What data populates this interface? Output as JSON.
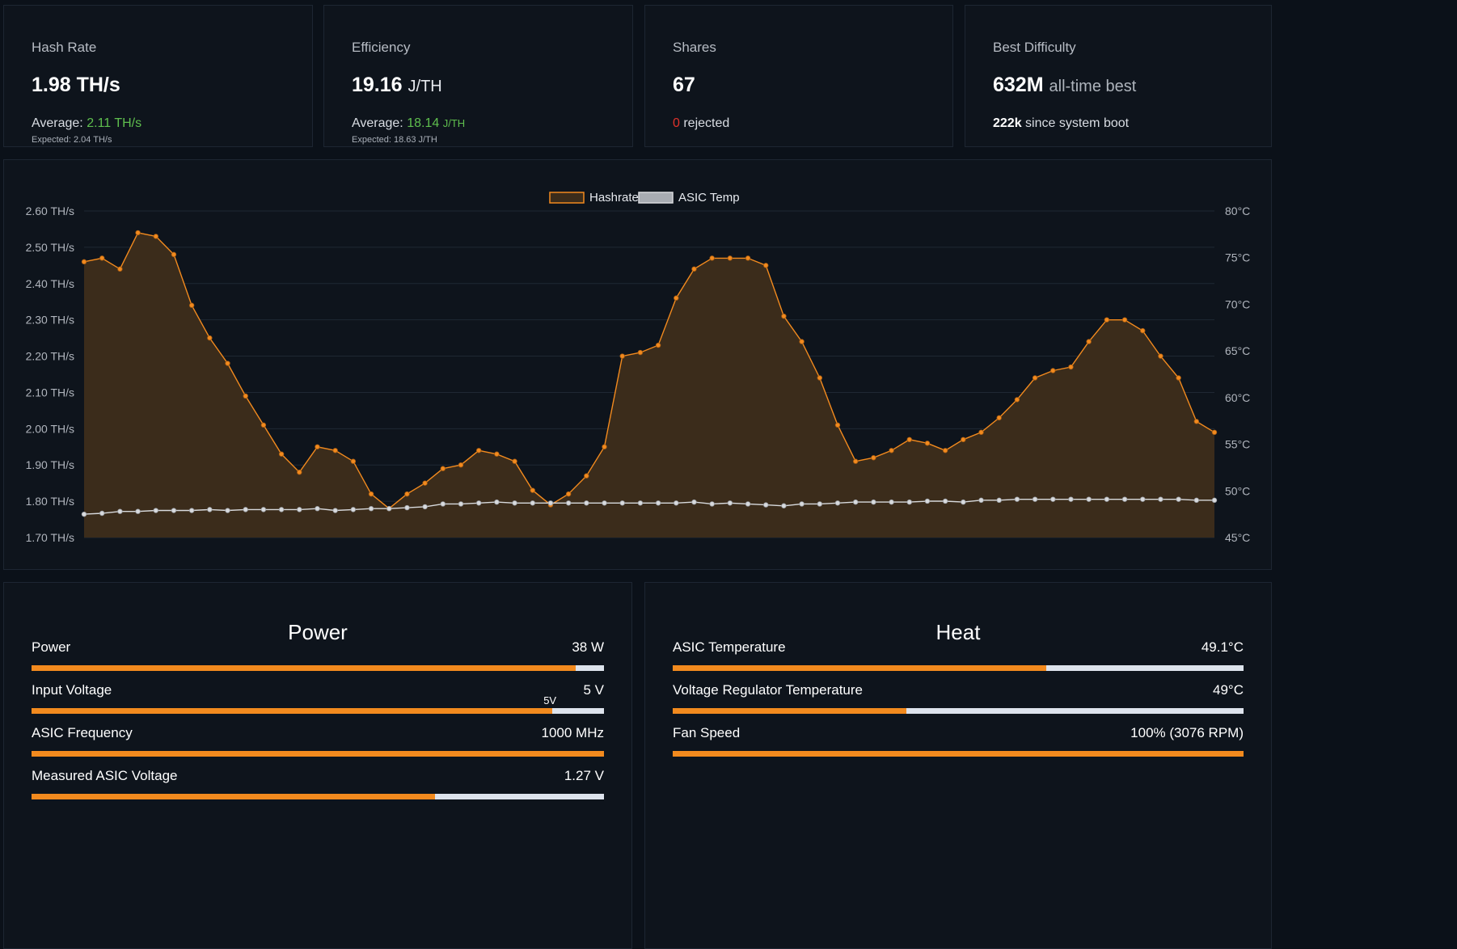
{
  "stats": [
    {
      "title": "Hash Rate",
      "value": "1.98 TH/s",
      "line1_prefix": "Average: ",
      "line1_value": "2.11 TH/s",
      "line2": "Expected: 2.04 TH/s"
    },
    {
      "title": "Efficiency",
      "value": "19.16",
      "unit": "J/TH",
      "line1_prefix": "Average: ",
      "line1_value": "18.14",
      "line1_unit": "J/TH",
      "line2": "Expected: 18.63 J/TH"
    },
    {
      "title": "Shares",
      "value": "67",
      "rejected_count": "0",
      "rejected_label": " rejected"
    },
    {
      "title": "Best Difficulty",
      "value": "632M",
      "value_suffix": "all-time best",
      "line1_value": "222k",
      "line1_suffix": " since system boot"
    }
  ],
  "colors": {
    "accent": "#f28a1e",
    "good": "#5fbf4e",
    "bad": "#e0322b",
    "temp_line": "#d8dadd",
    "background": "#0b1119",
    "card": "#0e141c"
  },
  "chart_data": {
    "type": "line",
    "legend": [
      "Hashrate",
      "ASIC Temp"
    ],
    "legend_position": "top-center",
    "grid": true,
    "y_left": {
      "ylim": [
        1.7,
        2.6
      ],
      "ticks": [
        "2.60 TH/s",
        "2.50 TH/s",
        "2.40 TH/s",
        "2.30 TH/s",
        "2.20 TH/s",
        "2.10 TH/s",
        "2.00 TH/s",
        "1.90 TH/s",
        "1.80 TH/s",
        "1.70 TH/s"
      ]
    },
    "y_right": {
      "ylim": [
        45,
        80
      ],
      "ticks": [
        "80°C",
        "75°C",
        "70°C",
        "65°C",
        "60°C",
        "55°C",
        "50°C",
        "45°C"
      ]
    },
    "series": [
      {
        "name": "Hashrate",
        "axis": "left",
        "color": "#f28a1e",
        "fill": true,
        "values": [
          2.46,
          2.47,
          2.44,
          2.54,
          2.53,
          2.48,
          2.34,
          2.25,
          2.18,
          2.09,
          2.01,
          1.93,
          1.88,
          1.95,
          1.94,
          1.91,
          1.82,
          1.78,
          1.82,
          1.85,
          1.89,
          1.9,
          1.94,
          1.93,
          1.91,
          1.83,
          1.79,
          1.82,
          1.87,
          1.95,
          2.2,
          2.21,
          2.23,
          2.36,
          2.44,
          2.47,
          2.47,
          2.47,
          2.45,
          2.31,
          2.24,
          2.14,
          2.01,
          1.91,
          1.92,
          1.94,
          1.97,
          1.96,
          1.94,
          1.97,
          1.99,
          2.03,
          2.08,
          2.14,
          2.16,
          2.17,
          2.24,
          2.3,
          2.3,
          2.27,
          2.2,
          2.14,
          2.02,
          1.99
        ]
      },
      {
        "name": "ASIC Temp",
        "axis": "right",
        "color": "#d8dadd",
        "fill": false,
        "values": [
          47.5,
          47.6,
          47.8,
          47.8,
          47.9,
          47.9,
          47.9,
          48.0,
          47.9,
          48.0,
          48.0,
          48.0,
          48.0,
          48.1,
          47.9,
          48.0,
          48.1,
          48.1,
          48.2,
          48.3,
          48.6,
          48.6,
          48.7,
          48.8,
          48.7,
          48.7,
          48.7,
          48.7,
          48.7,
          48.7,
          48.7,
          48.7,
          48.7,
          48.7,
          48.8,
          48.6,
          48.7,
          48.6,
          48.5,
          48.4,
          48.6,
          48.6,
          48.7,
          48.8,
          48.8,
          48.8,
          48.8,
          48.9,
          48.9,
          48.8,
          49.0,
          49.0,
          49.1,
          49.1,
          49.1,
          49.1,
          49.1,
          49.1,
          49.1,
          49.1,
          49.1,
          49.1,
          49.0,
          49.0
        ]
      }
    ]
  },
  "power_panel": {
    "title": "Power",
    "gauges": [
      {
        "label": "Power",
        "value": "38 W",
        "fill_fraction": 0.95
      },
      {
        "label": "Input Voltage",
        "value": "5 V",
        "fill_fraction": 0.91,
        "marker": "5V"
      },
      {
        "label": "ASIC Frequency",
        "value": "1000 MHz",
        "fill_fraction": 1.0
      },
      {
        "label": "Measured ASIC Voltage",
        "value": "1.27 V",
        "fill_fraction": 0.705
      }
    ]
  },
  "heat_panel": {
    "title": "Heat",
    "gauges": [
      {
        "label": "ASIC Temperature",
        "value": "49.1°C",
        "fill_fraction": 0.655
      },
      {
        "label": "Voltage Regulator Temperature",
        "value": "49°C",
        "fill_fraction": 0.41
      },
      {
        "label": "Fan Speed",
        "value": "100% (3076 RPM)",
        "fill_fraction": 1.0
      }
    ]
  }
}
